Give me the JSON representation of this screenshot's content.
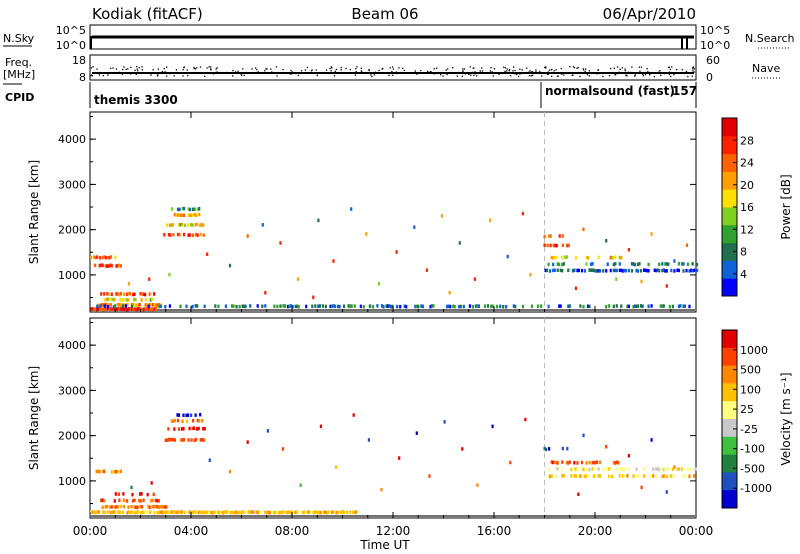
{
  "header": {
    "station": "Kodiak (fitACF)",
    "beam": "Beam 06",
    "date": "06/Apr/2010"
  },
  "summary_panels": {
    "nsky": {
      "label": "N.Sky",
      "ticks": [
        "10^5",
        "10^0"
      ]
    },
    "nsearch": {
      "label": "N.Search",
      "ticks": [
        "10^5",
        "10^0"
      ]
    },
    "freq": {
      "label_line1": "Freq.",
      "label_line2": "[MHz]",
      "ticks": [
        "18",
        "8"
      ]
    },
    "nave": {
      "label": "Nave",
      "ticks": [
        "60",
        "0"
      ]
    },
    "cpid": {
      "label": "CPID",
      "programs": [
        "themis 3300",
        "normalsound (fast)"
      ],
      "program_code": "157"
    }
  },
  "colors": {
    "power": [
      "#0000ff",
      "#1060d8",
      "#207050",
      "#30a030",
      "#80d020",
      "#ffe000",
      "#ffa000",
      "#ff6000",
      "#ff2000",
      "#e00000"
    ],
    "velocity": [
      "#e00000",
      "#ff4000",
      "#ff8800",
      "#ffc000",
      "#ffff80",
      "#c8c8c8",
      "#40c040",
      "#208040",
      "#2050c0",
      "#0000d0"
    ]
  },
  "chart_data": [
    {
      "type": "heatmap",
      "name": "power",
      "ylabel": "Slant Range [km]",
      "xlabel": "Time UT",
      "x_ticks": [
        "00:00",
        "04:00",
        "08:00",
        "12:00",
        "16:00",
        "20:00",
        "00:00"
      ],
      "y_ticks": [
        "1000",
        "2000",
        "3000",
        "4000"
      ],
      "xlim_hours": [
        0,
        24
      ],
      "ylim_km": [
        180,
        4600
      ],
      "mode_change_hour": 18.0,
      "colorbar": {
        "label": "Power [dB]",
        "ticks": [
          "4",
          "8",
          "12",
          "16",
          "20",
          "24",
          "28"
        ],
        "range": [
          0,
          30
        ]
      },
      "bands": [
        {
          "t0": 0.0,
          "t1": 2.6,
          "r": 240,
          "v": 26,
          "density": 0.95
        },
        {
          "t0": 0.3,
          "t1": 2.8,
          "r": 330,
          "v": 20,
          "density": 0.8
        },
        {
          "t0": 0.5,
          "t1": 2.7,
          "r": 450,
          "v": 16,
          "density": 0.55
        },
        {
          "t0": 0.4,
          "t1": 2.6,
          "r": 570,
          "v": 23,
          "density": 0.55
        },
        {
          "t0": 0.0,
          "t1": 23.8,
          "r": 300,
          "v": 6,
          "density": 0.35
        },
        {
          "t0": 0.1,
          "t1": 1.2,
          "r": 1200,
          "v": 24,
          "density": 0.7
        },
        {
          "t0": 0.0,
          "t1": 1.0,
          "r": 1380,
          "v": 22,
          "density": 0.6
        },
        {
          "t0": 2.9,
          "t1": 4.5,
          "r": 1880,
          "v": 24,
          "density": 0.7
        },
        {
          "t0": 3.0,
          "t1": 4.5,
          "r": 2100,
          "v": 16,
          "density": 0.6
        },
        {
          "t0": 3.2,
          "t1": 4.3,
          "r": 2320,
          "v": 20,
          "density": 0.65
        },
        {
          "t0": 3.2,
          "t1": 4.4,
          "r": 2450,
          "v": 10,
          "density": 0.55
        },
        {
          "t0": 18.0,
          "t1": 24.0,
          "r": 1090,
          "v": 4,
          "density": 0.55
        },
        {
          "t0": 18.0,
          "t1": 24.0,
          "r": 1230,
          "v": 8,
          "density": 0.45
        },
        {
          "t0": 18.0,
          "t1": 21.0,
          "r": 1380,
          "v": 18,
          "density": 0.35
        },
        {
          "t0": 17.9,
          "t1": 19.0,
          "r": 1650,
          "v": 26,
          "density": 0.5
        },
        {
          "t0": 17.9,
          "t1": 19.0,
          "r": 1850,
          "v": 22,
          "density": 0.4
        }
      ],
      "scatter": [
        [
          1.5,
          800,
          20
        ],
        [
          2.3,
          900,
          24
        ],
        [
          3.1,
          1000,
          14
        ],
        [
          4.6,
          1450,
          26
        ],
        [
          5.5,
          1200,
          8
        ],
        [
          6.2,
          1850,
          22
        ],
        [
          6.8,
          2100,
          4
        ],
        [
          7.5,
          1700,
          24
        ],
        [
          8.2,
          900,
          18
        ],
        [
          9.0,
          2200,
          6
        ],
        [
          9.6,
          1300,
          24
        ],
        [
          10.3,
          2450,
          4
        ],
        [
          10.9,
          1900,
          20
        ],
        [
          11.4,
          800,
          12
        ],
        [
          12.1,
          1500,
          24
        ],
        [
          12.8,
          2050,
          4
        ],
        [
          13.3,
          1100,
          24
        ],
        [
          13.9,
          2300,
          20
        ],
        [
          14.6,
          1700,
          6
        ],
        [
          15.2,
          900,
          24
        ],
        [
          15.8,
          2200,
          18
        ],
        [
          16.5,
          1400,
          4
        ],
        [
          17.1,
          2350,
          24
        ],
        [
          17.4,
          1000,
          20
        ],
        [
          6.9,
          600,
          26
        ],
        [
          8.8,
          500,
          24
        ],
        [
          14.2,
          600,
          20
        ],
        [
          19.5,
          2000,
          22
        ],
        [
          20.4,
          1750,
          6
        ],
        [
          21.3,
          1550,
          24
        ],
        [
          22.2,
          1900,
          20
        ],
        [
          23.1,
          1300,
          4
        ],
        [
          22.8,
          750,
          24
        ],
        [
          21.8,
          850,
          20
        ],
        [
          20.8,
          900,
          14
        ],
        [
          19.2,
          700,
          26
        ],
        [
          23.6,
          1650,
          22
        ]
      ]
    },
    {
      "type": "heatmap",
      "name": "velocity",
      "ylabel": "Slant Range [km]",
      "xlabel": "Time UT",
      "x_ticks": [
        "00:00",
        "04:00",
        "08:00",
        "12:00",
        "16:00",
        "20:00",
        "00:00"
      ],
      "y_ticks": [
        "1000",
        "2000",
        "3000",
        "4000"
      ],
      "xlim_hours": [
        0,
        24
      ],
      "ylim_km": [
        180,
        4600
      ],
      "mode_change_hour": 18.0,
      "colorbar": {
        "label": "Velocity [m s⁻¹]",
        "ticks": [
          "1000",
          "500",
          "100",
          "25",
          "-25",
          "-100",
          "-500",
          "-1000"
        ]
      },
      "bands": [
        {
          "t0": 0.0,
          "t1": 10.5,
          "r": 300,
          "c": 3,
          "density": 0.85
        },
        {
          "t0": 0.4,
          "t1": 3.0,
          "r": 420,
          "c": 2,
          "density": 0.6
        },
        {
          "t0": 0.4,
          "t1": 2.8,
          "r": 560,
          "c": 1,
          "density": 0.5
        },
        {
          "t0": 0.8,
          "t1": 2.6,
          "r": 700,
          "c": 0,
          "density": 0.35
        },
        {
          "t0": 0.1,
          "t1": 1.2,
          "r": 1200,
          "c": 2,
          "density": 0.6
        },
        {
          "t0": 2.9,
          "t1": 4.5,
          "r": 1900,
          "c": 1,
          "density": 0.55
        },
        {
          "t0": 3.0,
          "t1": 4.5,
          "r": 2150,
          "c": 0,
          "density": 0.55
        },
        {
          "t0": 3.2,
          "t1": 4.4,
          "r": 2320,
          "c": 2,
          "density": 0.55
        },
        {
          "t0": 3.3,
          "t1": 4.4,
          "r": 2450,
          "c": 9,
          "density": 0.45
        },
        {
          "t0": 18.0,
          "t1": 24.0,
          "r": 1100,
          "c": 3,
          "density": 0.45
        },
        {
          "t0": 18.0,
          "t1": 24.0,
          "r": 1250,
          "c": 4,
          "density": 0.4
        },
        {
          "t0": 18.0,
          "t1": 21.0,
          "r": 1400,
          "c": 1,
          "density": 0.3
        },
        {
          "t0": 17.9,
          "t1": 19.0,
          "r": 1700,
          "c": 8,
          "density": 0.35
        }
      ],
      "scatter": [
        [
          1.6,
          850,
          7
        ],
        [
          2.4,
          950,
          0
        ],
        [
          4.7,
          1450,
          8
        ],
        [
          5.5,
          1200,
          2
        ],
        [
          6.2,
          1850,
          0
        ],
        [
          7.0,
          2100,
          8
        ],
        [
          7.6,
          1700,
          1
        ],
        [
          8.3,
          900,
          6
        ],
        [
          9.1,
          2200,
          0
        ],
        [
          9.7,
          1300,
          3
        ],
        [
          10.4,
          2450,
          0
        ],
        [
          11.0,
          1900,
          8
        ],
        [
          11.5,
          800,
          2
        ],
        [
          12.2,
          1500,
          0
        ],
        [
          12.9,
          2050,
          9
        ],
        [
          13.4,
          1100,
          1
        ],
        [
          14.0,
          2300,
          8
        ],
        [
          14.7,
          1700,
          0
        ],
        [
          15.3,
          900,
          2
        ],
        [
          15.9,
          2200,
          9
        ],
        [
          16.6,
          1400,
          1
        ],
        [
          17.2,
          2350,
          0
        ],
        [
          19.5,
          2000,
          8
        ],
        [
          20.4,
          1750,
          1
        ],
        [
          21.3,
          1550,
          0
        ],
        [
          22.2,
          1900,
          9
        ],
        [
          23.1,
          1300,
          2
        ],
        [
          22.8,
          750,
          8
        ],
        [
          21.8,
          850,
          1
        ],
        [
          19.3,
          700,
          0
        ]
      ]
    }
  ]
}
